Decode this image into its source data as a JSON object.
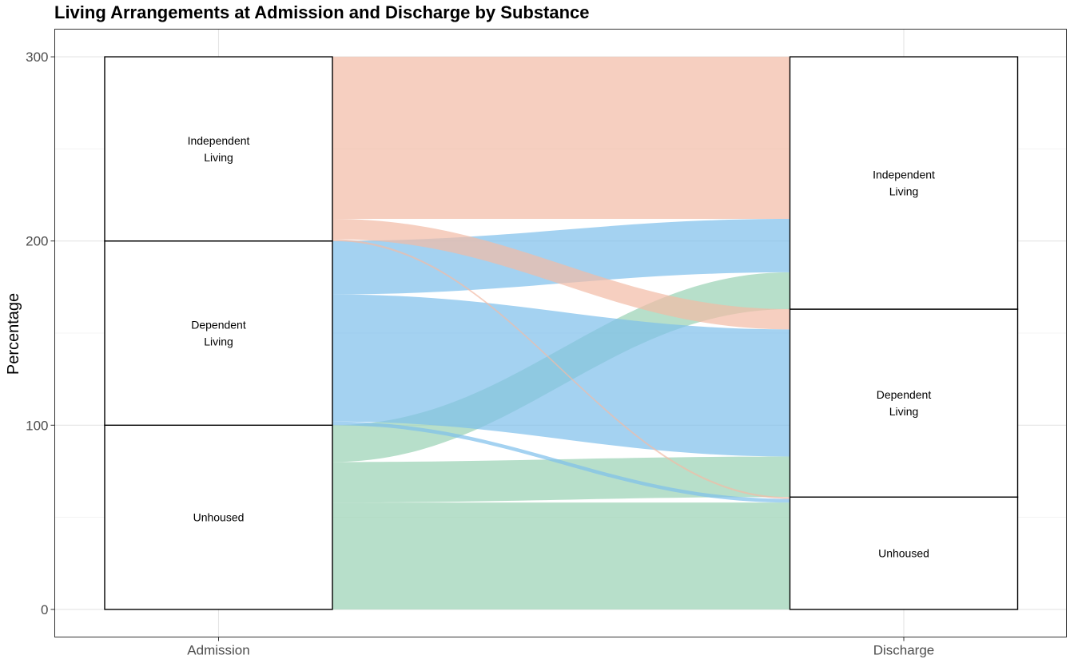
{
  "chart_data": {
    "type": "alluvial",
    "title": "Living Arrangements at Admission and Discharge by Substance",
    "ylabel": "Percentage",
    "xlabel": "",
    "ylim": [
      -15,
      315
    ],
    "y_ticks": [
      0,
      100,
      200,
      300
    ],
    "axes": [
      "Admission",
      "Discharge"
    ],
    "grid": true,
    "categories": [
      "Independent Living",
      "Dependent Living",
      "Unhoused"
    ],
    "category_display_lines": {
      "Independent Living": [
        "Independent",
        "Living"
      ],
      "Dependent Living": [
        "Dependent",
        "Living"
      ],
      "Unhoused": [
        "Unhoused"
      ]
    },
    "node_totals": {
      "Admission": {
        "Independent Living": 100,
        "Dependent Living": 100,
        "Unhoused": 100
      },
      "Discharge": {
        "Independent Living": 137,
        "Dependent Living": 102,
        "Unhoused": 61
      }
    },
    "flow_colors": {
      "Independent Living": "#f2bba5",
      "Dependent Living": "#7dbfeb",
      "Unhoused": "#99d1b4"
    },
    "flow_opacity": 0.7,
    "flows": [
      {
        "from": "Unhoused",
        "to": "Unhoused",
        "value": 58
      },
      {
        "from": "Unhoused",
        "to": "Dependent Living",
        "value": 22
      },
      {
        "from": "Unhoused",
        "to": "Independent Living",
        "value": 20
      },
      {
        "from": "Dependent Living",
        "to": "Unhoused",
        "value": 2
      },
      {
        "from": "Dependent Living",
        "to": "Dependent Living",
        "value": 69
      },
      {
        "from": "Dependent Living",
        "to": "Independent Living",
        "value": 29
      },
      {
        "from": "Independent Living",
        "to": "Unhoused",
        "value": 1
      },
      {
        "from": "Independent Living",
        "to": "Dependent Living",
        "value": 11
      },
      {
        "from": "Independent Living",
        "to": "Independent Living",
        "value": 88
      }
    ]
  }
}
